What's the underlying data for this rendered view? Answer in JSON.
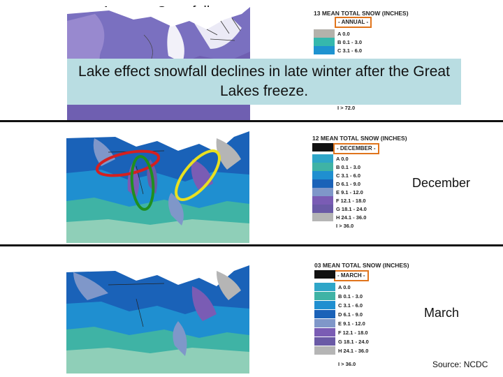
{
  "title": "Average Snowfall",
  "callout": "Lake effect snowfall declines in late winter after the Great Lakes freeze.",
  "source": "Source: NCDC",
  "panels": {
    "annual": {
      "legend_title": "13 MEAN TOTAL SNOW (INCHES)",
      "period": "- ANNUAL -",
      "legend": [
        "A 0.0",
        "B 0.1 - 3.0",
        "C 3.1 - 6.0"
      ],
      "legend_tail": "I > 72.0"
    },
    "december": {
      "label": "December",
      "legend_title": "12 MEAN TOTAL SNOW (INCHES)",
      "period": "- DECEMBER -",
      "legend": [
        "A 0.0",
        "B 0.1 - 3.0",
        "C 3.1 - 6.0",
        "D 6.1 - 9.0",
        "E 9.1 - 12.0",
        "F 12.1 - 18.0",
        "G 18.1 - 24.0",
        "H 24.1 - 36.0",
        "I > 36.0"
      ]
    },
    "march": {
      "label": "March",
      "legend_title": "03 MEAN TOTAL SNOW (INCHES)",
      "period": "- MARCH -",
      "legend": [
        "A 0.0",
        "B 0.1 - 3.0",
        "C 3.1 - 6.0",
        "D 6.1 - 9.0",
        "E 9.1 - 12.0",
        "F 12.1 - 18.0",
        "G 18.1 - 24.0",
        "H 24.1 - 36.0",
        "I > 36.0"
      ]
    }
  },
  "colors": {
    "A": "#111111",
    "B": "#3fb3a5",
    "C": "#1f8fd0",
    "D": "#1a62b8",
    "E": "#7f97c9",
    "F": "#7a5cb4",
    "G": "#6a5aa6",
    "H": "#b5b5b5",
    "I": "#ffffff",
    "annual_A": "#b4b2ab",
    "annual_B": "#35b8ad",
    "annual_C": "#1e93d0",
    "highlight_box": "#e0741c",
    "ring_red": "#d42020",
    "ring_green": "#1f8f1f",
    "ring_yellow": "#e8e020"
  }
}
